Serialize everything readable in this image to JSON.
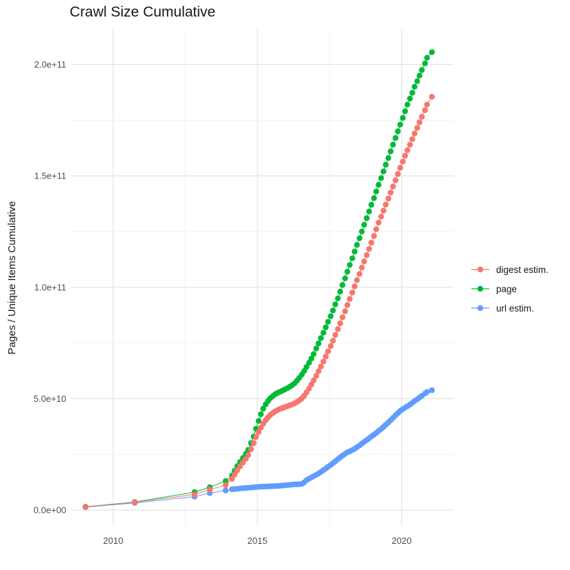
{
  "figure": {
    "title": "Crawl Size Cumulative",
    "background_color": "#FFFFFF"
  },
  "chart_data": {
    "type": "line",
    "subtype": "points-with-connecting-lines (ggplot2 style)",
    "title": "Crawl Size Cumulative",
    "xlabel": "",
    "ylabel": "Pages / Unique Items Cumulative",
    "grid": true,
    "gridline_major_color": "#E3E3E3",
    "gridline_minor_color": "#EFEFEF",
    "axis_text_color": "#4D4D4D",
    "legend_position": "right",
    "value_unit": "items; stored as billions (1 = 1e9)",
    "xlim_years": [
      2008.55,
      2021.85
    ],
    "ylim_billions": [
      -7,
      223
    ],
    "x_ticks": [
      {
        "v": 2010,
        "label": "2010"
      },
      {
        "v": 2015,
        "label": "2015"
      },
      {
        "v": 2020,
        "label": "2020"
      }
    ],
    "y_ticks": [
      {
        "v": 0,
        "label": "0.0e+00"
      },
      {
        "v": 50,
        "label": "5.0e+10"
      },
      {
        "v": 100,
        "label": "1.0e+11"
      },
      {
        "v": 150,
        "label": "1.5e+11"
      },
      {
        "v": 200,
        "label": "2.0e+11"
      }
    ],
    "x_minor_years": [
      2012.5,
      2017.5
    ],
    "y_minor_billions": [
      25,
      75,
      125,
      175
    ],
    "draw_order": [
      "page",
      "url estim.",
      "digest estim."
    ],
    "series": [
      {
        "name": "digest estim.",
        "color": "#F8766D",
        "points_year_billions": [
          [
            2009.04,
            1.4
          ],
          [
            2010.75,
            3.5
          ],
          [
            2012.82,
            7
          ],
          [
            2013.35,
            9.2
          ],
          [
            2013.9,
            11.2
          ],
          [
            2014.12,
            14
          ],
          [
            2014.21,
            15.9
          ],
          [
            2014.3,
            17.8
          ],
          [
            2014.4,
            19.6
          ],
          [
            2014.5,
            21.3
          ],
          [
            2014.6,
            23
          ],
          [
            2014.68,
            24.7
          ],
          [
            2014.78,
            27.3
          ],
          [
            2014.87,
            30
          ],
          [
            2014.95,
            32.8
          ],
          [
            2015.04,
            35
          ],
          [
            2015.12,
            37
          ],
          [
            2015.2,
            38.8
          ],
          [
            2015.29,
            40.3
          ],
          [
            2015.37,
            41.6
          ],
          [
            2015.45,
            42.7
          ],
          [
            2015.54,
            43.6
          ],
          [
            2015.62,
            44.3
          ],
          [
            2015.7,
            44.9
          ],
          [
            2015.79,
            45.4
          ],
          [
            2015.87,
            45.8
          ],
          [
            2015.95,
            46.2
          ],
          [
            2016.04,
            46.6
          ],
          [
            2016.12,
            47
          ],
          [
            2016.2,
            47.4
          ],
          [
            2016.29,
            47.9
          ],
          [
            2016.37,
            48.5
          ],
          [
            2016.45,
            49.2
          ],
          [
            2016.54,
            50.1
          ],
          [
            2016.62,
            51.3
          ],
          [
            2016.7,
            52.8
          ],
          [
            2016.79,
            54.5
          ],
          [
            2016.87,
            56.3
          ],
          [
            2016.95,
            58.2
          ],
          [
            2017.04,
            60.2
          ],
          [
            2017.12,
            62.3
          ],
          [
            2017.2,
            64.4
          ],
          [
            2017.29,
            66.6
          ],
          [
            2017.37,
            68.9
          ],
          [
            2017.45,
            71.2
          ],
          [
            2017.54,
            73.6
          ],
          [
            2017.62,
            76
          ],
          [
            2017.7,
            78.6
          ],
          [
            2017.79,
            81.2
          ],
          [
            2017.87,
            83.8
          ],
          [
            2017.95,
            86.5
          ],
          [
            2018.04,
            89.2
          ],
          [
            2018.12,
            92
          ],
          [
            2018.2,
            94.8
          ],
          [
            2018.29,
            97.6
          ],
          [
            2018.37,
            100.4
          ],
          [
            2018.45,
            103.2
          ],
          [
            2018.54,
            106
          ],
          [
            2018.62,
            108.8
          ],
          [
            2018.7,
            111.6
          ],
          [
            2018.79,
            114.4
          ],
          [
            2018.87,
            117.2
          ],
          [
            2018.95,
            120
          ],
          [
            2019.04,
            123
          ],
          [
            2019.12,
            126
          ],
          [
            2019.2,
            129
          ],
          [
            2019.29,
            131.7
          ],
          [
            2019.37,
            134.4
          ],
          [
            2019.45,
            137.1
          ],
          [
            2019.54,
            139.8
          ],
          [
            2019.62,
            142.5
          ],
          [
            2019.7,
            145.2
          ],
          [
            2019.79,
            148
          ],
          [
            2019.87,
            150.8
          ],
          [
            2019.95,
            153.6
          ],
          [
            2020.04,
            156.4
          ],
          [
            2020.12,
            159
          ],
          [
            2020.2,
            161.5
          ],
          [
            2020.29,
            164
          ],
          [
            2020.37,
            166.5
          ],
          [
            2020.45,
            169
          ],
          [
            2020.54,
            171.5
          ],
          [
            2020.62,
            174
          ],
          [
            2020.7,
            176.5
          ],
          [
            2020.81,
            179.5
          ],
          [
            2020.88,
            182
          ],
          [
            2021.05,
            185.5
          ]
        ]
      },
      {
        "name": "page",
        "color": "#00BA38",
        "points_year_billions": [
          [
            2009.04,
            1.5
          ],
          [
            2010.75,
            3.6
          ],
          [
            2012.82,
            8
          ],
          [
            2013.35,
            10.2
          ],
          [
            2013.9,
            13
          ],
          [
            2014.12,
            15.5
          ],
          [
            2014.21,
            17.6
          ],
          [
            2014.3,
            19.7
          ],
          [
            2014.4,
            21.6
          ],
          [
            2014.5,
            23.4
          ],
          [
            2014.6,
            25.2
          ],
          [
            2014.68,
            27
          ],
          [
            2014.78,
            30
          ],
          [
            2014.87,
            33
          ],
          [
            2014.95,
            36.5
          ],
          [
            2015.04,
            40
          ],
          [
            2015.12,
            43
          ],
          [
            2015.2,
            45.5
          ],
          [
            2015.29,
            47.5
          ],
          [
            2015.37,
            49
          ],
          [
            2015.45,
            50.2
          ],
          [
            2015.54,
            51.2
          ],
          [
            2015.62,
            52
          ],
          [
            2015.7,
            52.6
          ],
          [
            2015.79,
            53.1
          ],
          [
            2015.87,
            53.6
          ],
          [
            2015.95,
            54.1
          ],
          [
            2016.04,
            54.7
          ],
          [
            2016.12,
            55.3
          ],
          [
            2016.2,
            56
          ],
          [
            2016.29,
            56.9
          ],
          [
            2016.37,
            58
          ],
          [
            2016.45,
            59.3
          ],
          [
            2016.54,
            60.8
          ],
          [
            2016.62,
            62.4
          ],
          [
            2016.7,
            64.2
          ],
          [
            2016.79,
            66.1
          ],
          [
            2016.87,
            68
          ],
          [
            2016.95,
            70
          ],
          [
            2017.04,
            72.5
          ],
          [
            2017.12,
            74.8
          ],
          [
            2017.2,
            77.2
          ],
          [
            2017.29,
            79.6
          ],
          [
            2017.37,
            82
          ],
          [
            2017.45,
            84.5
          ],
          [
            2017.54,
            87
          ],
          [
            2017.62,
            89.6
          ],
          [
            2017.7,
            92.3
          ],
          [
            2017.79,
            95
          ],
          [
            2017.87,
            98
          ],
          [
            2017.95,
            101
          ],
          [
            2018.04,
            104
          ],
          [
            2018.12,
            107
          ],
          [
            2018.2,
            110
          ],
          [
            2018.29,
            113
          ],
          [
            2018.37,
            116
          ],
          [
            2018.45,
            119
          ],
          [
            2018.54,
            122
          ],
          [
            2018.62,
            125
          ],
          [
            2018.7,
            128
          ],
          [
            2018.79,
            131
          ],
          [
            2018.87,
            134
          ],
          [
            2018.95,
            137
          ],
          [
            2019.04,
            140
          ],
          [
            2019.12,
            143
          ],
          [
            2019.2,
            146
          ],
          [
            2019.29,
            149
          ],
          [
            2019.37,
            152
          ],
          [
            2019.45,
            155
          ],
          [
            2019.54,
            158
          ],
          [
            2019.62,
            161
          ],
          [
            2019.7,
            164
          ],
          [
            2019.79,
            167
          ],
          [
            2019.87,
            170
          ],
          [
            2019.95,
            173
          ],
          [
            2020.04,
            176
          ],
          [
            2020.12,
            179
          ],
          [
            2020.2,
            182
          ],
          [
            2020.29,
            184.7
          ],
          [
            2020.37,
            187.3
          ],
          [
            2020.45,
            190
          ],
          [
            2020.54,
            192.5
          ],
          [
            2020.62,
            195
          ],
          [
            2020.7,
            197.5
          ],
          [
            2020.81,
            200.5
          ],
          [
            2020.88,
            203
          ],
          [
            2021.05,
            205.5
          ]
        ]
      },
      {
        "name": "url estim.",
        "color": "#619CFF",
        "points_year_billions": [
          [
            2009.04,
            1.3
          ],
          [
            2010.75,
            3.2
          ],
          [
            2012.82,
            6
          ],
          [
            2013.35,
            7.6
          ],
          [
            2013.9,
            8.8
          ],
          [
            2014.12,
            9.3
          ],
          [
            2014.21,
            9.4
          ],
          [
            2014.3,
            9.5
          ],
          [
            2014.4,
            9.7
          ],
          [
            2014.5,
            9.8
          ],
          [
            2014.6,
            9.9
          ],
          [
            2014.68,
            10
          ],
          [
            2014.78,
            10.1
          ],
          [
            2014.87,
            10.2
          ],
          [
            2014.95,
            10.3
          ],
          [
            2015.04,
            10.4
          ],
          [
            2015.12,
            10.45
          ],
          [
            2015.2,
            10.5
          ],
          [
            2015.29,
            10.55
          ],
          [
            2015.37,
            10.6
          ],
          [
            2015.45,
            10.65
          ],
          [
            2015.54,
            10.7
          ],
          [
            2015.62,
            10.75
          ],
          [
            2015.7,
            10.8
          ],
          [
            2015.79,
            10.9
          ],
          [
            2015.87,
            11
          ],
          [
            2015.95,
            11.1
          ],
          [
            2016.04,
            11.2
          ],
          [
            2016.12,
            11.3
          ],
          [
            2016.2,
            11.4
          ],
          [
            2016.29,
            11.5
          ],
          [
            2016.37,
            11.55
          ],
          [
            2016.45,
            11.6
          ],
          [
            2016.54,
            11.7
          ],
          [
            2016.62,
            12.4
          ],
          [
            2016.7,
            13.4
          ],
          [
            2016.79,
            14
          ],
          [
            2016.87,
            14.6
          ],
          [
            2016.95,
            15.2
          ],
          [
            2017.04,
            15.8
          ],
          [
            2017.12,
            16.4
          ],
          [
            2017.2,
            17.1
          ],
          [
            2017.29,
            17.9
          ],
          [
            2017.37,
            18.6
          ],
          [
            2017.45,
            19.4
          ],
          [
            2017.54,
            20.2
          ],
          [
            2017.62,
            21
          ],
          [
            2017.7,
            21.9
          ],
          [
            2017.79,
            22.8
          ],
          [
            2017.87,
            23.6
          ],
          [
            2017.95,
            24.4
          ],
          [
            2018.04,
            25.2
          ],
          [
            2018.12,
            25.9
          ],
          [
            2018.2,
            26.4
          ],
          [
            2018.29,
            26.9
          ],
          [
            2018.37,
            27.5
          ],
          [
            2018.45,
            28.2
          ],
          [
            2018.54,
            29
          ],
          [
            2018.62,
            29.8
          ],
          [
            2018.7,
            30.6
          ],
          [
            2018.79,
            31.4
          ],
          [
            2018.87,
            32.2
          ],
          [
            2018.95,
            33
          ],
          [
            2019.04,
            33.8
          ],
          [
            2019.12,
            34.6
          ],
          [
            2019.2,
            35.5
          ],
          [
            2019.29,
            36.4
          ],
          [
            2019.37,
            37.3
          ],
          [
            2019.45,
            38.3
          ],
          [
            2019.54,
            39.3
          ],
          [
            2019.62,
            40.3
          ],
          [
            2019.7,
            41.4
          ],
          [
            2019.79,
            42.5
          ],
          [
            2019.87,
            43.5
          ],
          [
            2019.95,
            44.5
          ],
          [
            2020.04,
            45.3
          ],
          [
            2020.12,
            46
          ],
          [
            2020.2,
            46.6
          ],
          [
            2020.29,
            47.3
          ],
          [
            2020.37,
            48.1
          ],
          [
            2020.45,
            48.9
          ],
          [
            2020.54,
            49.7
          ],
          [
            2020.62,
            50.5
          ],
          [
            2020.7,
            51.3
          ],
          [
            2020.81,
            52.3
          ],
          [
            2020.88,
            53
          ],
          [
            2021.05,
            53.8
          ]
        ]
      }
    ]
  }
}
